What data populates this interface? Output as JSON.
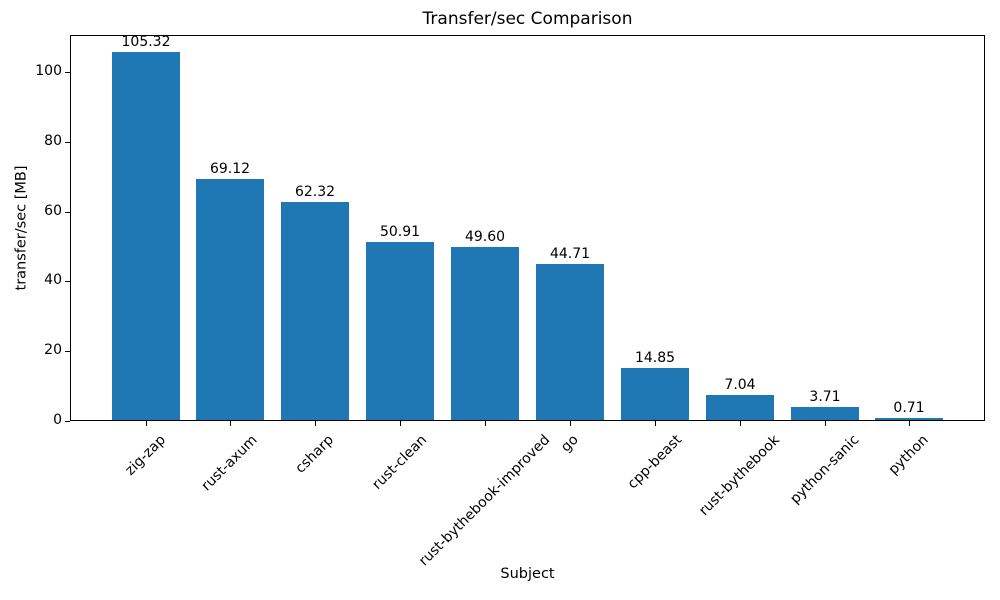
{
  "chart_data": {
    "type": "bar",
    "title": "Transfer/sec Comparison",
    "xlabel": "Subject",
    "ylabel": "transfer/sec [MB]",
    "categories": [
      "zig-zap",
      "rust-axum",
      "csharp",
      "rust-clean",
      "rust-bythebook-improved",
      "go",
      "cpp-beast",
      "rust-bythebook",
      "python-sanic",
      "python"
    ],
    "values": [
      105.32,
      69.12,
      62.32,
      50.91,
      49.6,
      44.71,
      14.85,
      7.04,
      3.71,
      0.71
    ],
    "bar_value_labels": [
      "105.32",
      "69.12",
      "62.32",
      "50.91",
      "49.60",
      "44.71",
      "14.85",
      "7.04",
      "3.71",
      "0.71"
    ],
    "yticks": [
      0,
      20,
      40,
      60,
      80,
      100
    ],
    "ylim": [
      0,
      110.6
    ],
    "grid": false,
    "legend_position": "none",
    "x_tick_rotation_deg": 45,
    "bar_color": "#1f77b4",
    "text_color": "#000000",
    "spine_color": "#000000"
  }
}
